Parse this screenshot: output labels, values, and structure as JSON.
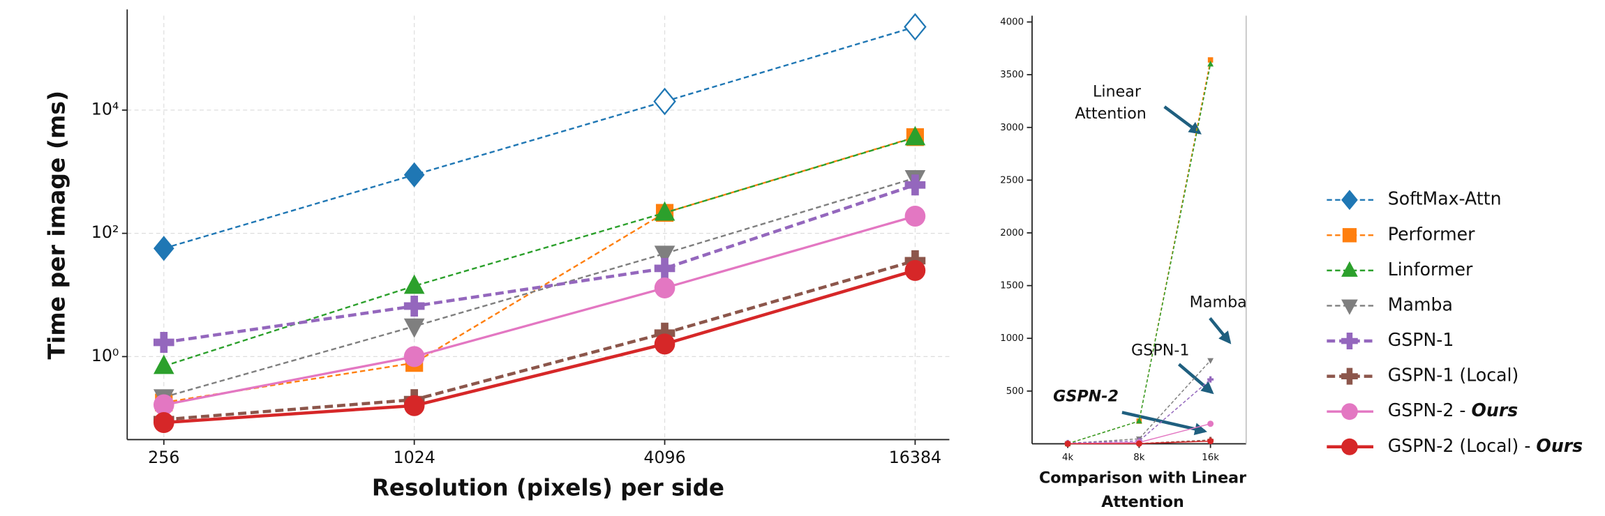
{
  "chart_data": [
    {
      "type": "line",
      "xlabel": "Resolution (pixels) per side",
      "ylabel": "Time per image (ms)",
      "xscale": "log",
      "yscale": "log",
      "grid": true,
      "x": [
        256,
        1024,
        4096,
        16384
      ],
      "xlim": [
        209,
        19800
      ],
      "xticks": [
        256,
        1024,
        4096,
        16384
      ],
      "ylim": [
        0.045,
        340000
      ],
      "yticks": [
        {
          "value": 1,
          "label": "10⁰"
        },
        {
          "value": 100,
          "label": "10²"
        },
        {
          "value": 10000,
          "label": "10⁴"
        }
      ],
      "legend": "right",
      "series": [
        {
          "name": "SoftMax-Attn",
          "color": "#1f77b4",
          "marker": "D",
          "linestyle": "dashed",
          "open_markers": [
            false,
            false,
            true,
            true
          ],
          "values": [
            57,
            890,
            13800,
            224000
          ]
        },
        {
          "name": "Performer",
          "color": "#ff7f0e",
          "marker": "s",
          "linestyle": "dashed",
          "values": [
            0.18,
            0.79,
            215,
            3640
          ]
        },
        {
          "name": "Linformer",
          "color": "#2ca02c",
          "marker": "^",
          "linestyle": "dashed",
          "values": [
            0.7,
            14,
            215,
            3600
          ]
        },
        {
          "name": "Mamba",
          "color": "#7f7f7f",
          "marker": "v",
          "linestyle": "dashed",
          "values": [
            0.22,
            3.1,
            47,
            790
          ]
        },
        {
          "name": "GSPN-1",
          "color": "#9467bd",
          "marker": "P",
          "linestyle": "dashed-bold",
          "values": [
            1.7,
            6.6,
            27,
            610
          ]
        },
        {
          "name": "GSPN-1 (Local)",
          "color": "#8c564b",
          "marker": "P",
          "linestyle": "dashed-bold",
          "values": [
            0.095,
            0.2,
            2.4,
            36
          ]
        },
        {
          "name": "GSPN-2 - Ours",
          "color": "#e377c2",
          "marker": "o",
          "linestyle": "solid",
          "values": [
            0.165,
            1.0,
            13,
            190
          ]
        },
        {
          "name": "GSPN-2 (Local) - Ours",
          "color": "#d62728",
          "marker": "o",
          "linestyle": "solid-bold",
          "values": [
            0.085,
            0.16,
            1.6,
            25
          ]
        }
      ]
    },
    {
      "type": "line",
      "xlabel": [
        "Comparison with Linear",
        "Attention"
      ],
      "categories": [
        "4k",
        "8k",
        "16k"
      ],
      "ylim": [
        0,
        4000
      ],
      "yticks": [
        500,
        1000,
        1500,
        2000,
        2500,
        3000,
        3500,
        4000
      ],
      "annotations": [
        [
          "Linear",
          "Attention"
        ],
        [
          "Mamba"
        ],
        [
          "GSPN-1"
        ],
        [
          "GSPN-2"
        ]
      ],
      "series": [
        {
          "color": "#ff7f0e",
          "marker": "s",
          "linestyle": "dashed",
          "values": [
            1,
            215,
            3640
          ]
        },
        {
          "color": "#2ca02c",
          "marker": "^",
          "linestyle": "dashed",
          "values": [
            1,
            215,
            3600
          ]
        },
        {
          "color": "#7f7f7f",
          "marker": "v",
          "linestyle": "dashed",
          "values": [
            3,
            47,
            790
          ]
        },
        {
          "color": "#9467bd",
          "marker": "P",
          "linestyle": "dashed",
          "values": [
            7,
            27,
            610
          ]
        },
        {
          "color": "#8c564b",
          "marker": "P",
          "linestyle": "dashed",
          "values": [
            0.2,
            2.4,
            36
          ]
        },
        {
          "color": "#e377c2",
          "marker": "o",
          "linestyle": "solid",
          "values": [
            1,
            13,
            190
          ]
        },
        {
          "color": "#d62728",
          "marker": "o",
          "linestyle": "solid",
          "values": [
            0.16,
            1.6,
            25
          ]
        }
      ]
    }
  ]
}
